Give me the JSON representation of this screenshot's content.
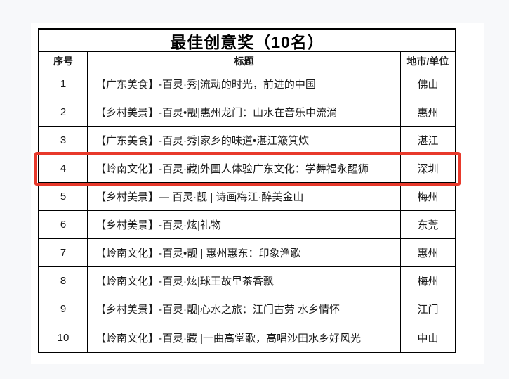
{
  "page": {
    "background": "#f7f8fa",
    "card_background": "#ffffff"
  },
  "table": {
    "title": "最佳创意奖（10名）",
    "columns": {
      "no": "序号",
      "title": "标题",
      "city": "地市/单位"
    },
    "highlight": {
      "row_number": "4",
      "color": "#e8392b"
    },
    "rows": [
      {
        "no": "1",
        "title": "【广东美食】-百灵·秀|流动的时光，前进的中国",
        "city": "佛山"
      },
      {
        "no": "2",
        "title": "【乡村美景】-百灵•靓|惠州龙门：山水在音乐中流淌",
        "city": "惠州"
      },
      {
        "no": "3",
        "title": "【广东美食】-百灵·秀|家乡的味道•湛江簸箕炊",
        "city": "湛江"
      },
      {
        "no": "4",
        "title": "【岭南文化】-百灵·藏|外国人体验广东文化：学舞福永醒狮",
        "city": "深圳"
      },
      {
        "no": "5",
        "title": "【乡村美景】— 百灵·靓 | 诗画梅江·醉美金山",
        "city": "梅州"
      },
      {
        "no": "6",
        "title": "【乡村美景】-百灵·炫|礼物",
        "city": "东莞"
      },
      {
        "no": "7",
        "title": "【岭南文化】-百灵•靓 | 惠州惠东：印象渔歌",
        "city": "惠州"
      },
      {
        "no": "8",
        "title": "【岭南文化】-百灵·炫|球王故里茶香飘",
        "city": "梅州"
      },
      {
        "no": "9",
        "title": "【乡村美景】-百灵·靓|心水之旅：江门古劳 水乡情怀",
        "city": "江门"
      },
      {
        "no": "10",
        "title": "【岭南文化】-百灵·藏 |一曲高堂歌，高唱沙田水乡好风光",
        "city": "中山"
      }
    ]
  }
}
